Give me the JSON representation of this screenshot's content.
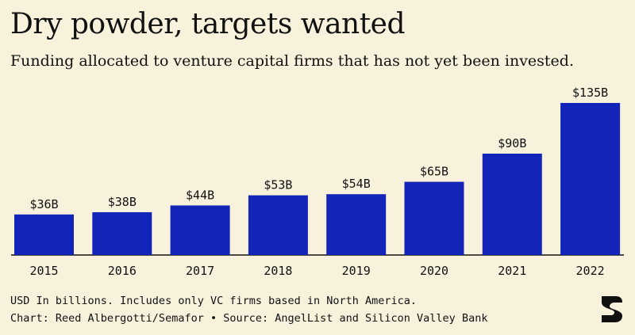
{
  "title": "Dry powder, targets wanted",
  "subtitle": "Funding allocated to venture capital firms that has not yet been invested.",
  "footnote": "USD In billions. Includes only VC firms based in North America.",
  "credit": "Chart: Reed Albergotti/Semafor • Source: AngelList and Silicon Valley Bank",
  "colors": {
    "bar": "#1325b8",
    "background": "#f8f2dc",
    "text": "#111111"
  },
  "chart_data": {
    "type": "bar",
    "categories": [
      "2015",
      "2016",
      "2017",
      "2018",
      "2019",
      "2020",
      "2021",
      "2022"
    ],
    "values": [
      36,
      38,
      44,
      53,
      54,
      65,
      90,
      135
    ],
    "value_labels": [
      "$36B",
      "$38B",
      "$44B",
      "$53B",
      "$54B",
      "$65B",
      "$90B",
      "$135B"
    ],
    "title": "Dry powder, targets wanted",
    "xlabel": "",
    "ylabel": "",
    "ylim": [
      0,
      135
    ],
    "grid": false,
    "legend": "none"
  }
}
